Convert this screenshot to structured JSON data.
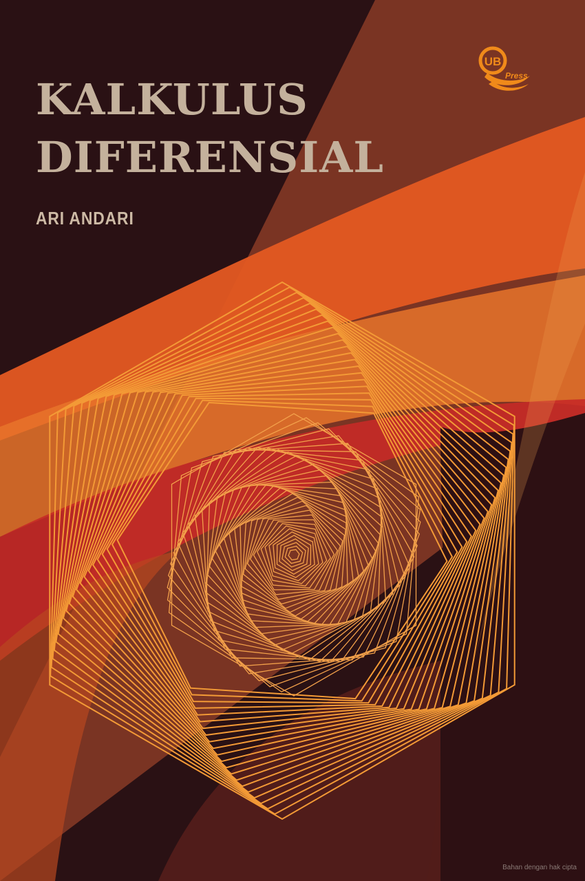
{
  "book": {
    "title_line_1": "KALKULUS",
    "title_line_2": "DIFERENSIAL",
    "author": "ARI ANDARI"
  },
  "publisher_logo": {
    "mark": "UB",
    "word": "Press",
    "icon": "ub-press-logo"
  },
  "watermark": "Bahan dengan hak cipta",
  "palette": {
    "background": "#2a1114",
    "title": "#c4b19c",
    "author": "#cdbaa5",
    "orange": "#f39a36",
    "red_orange": "#e0501f",
    "logo": "#f08a1a"
  },
  "artwork": {
    "motif": "nested rotating hexagon line spiral",
    "icon": "hexagon-spiral"
  }
}
